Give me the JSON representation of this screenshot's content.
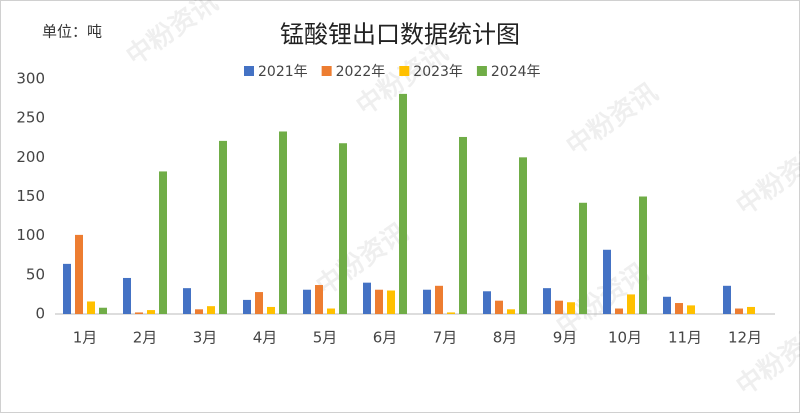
{
  "chart_data": {
    "type": "bar",
    "title": "锰酸锂出口数据统计图",
    "unit_label": "单位：吨",
    "watermark": "中粉资讯",
    "categories": [
      "1月",
      "2月",
      "3月",
      "4月",
      "5月",
      "6月",
      "7月",
      "8月",
      "9月",
      "10月",
      "11月",
      "12月"
    ],
    "series": [
      {
        "name": "2021年",
        "color": "#4472c4",
        "values": [
          64,
          46,
          33,
          18,
          31,
          40,
          31,
          29,
          33,
          82,
          22,
          36
        ]
      },
      {
        "name": "2022年",
        "color": "#ed7d31",
        "values": [
          101,
          2,
          6,
          28,
          37,
          31,
          36,
          17,
          17,
          7,
          14,
          7
        ]
      },
      {
        "name": "2023年",
        "color": "#ffc000",
        "values": [
          16,
          5,
          10,
          9,
          7,
          30,
          2,
          6,
          15,
          25,
          11,
          9
        ]
      },
      {
        "name": "2024年",
        "color": "#70ad47",
        "values": [
          8,
          182,
          221,
          233,
          218,
          281,
          226,
          200,
          142,
          150,
          null,
          null
        ]
      }
    ],
    "ylim": [
      0,
      300
    ],
    "yticks": [
      0,
      50,
      100,
      150,
      200,
      250,
      300
    ],
    "grid": false
  }
}
